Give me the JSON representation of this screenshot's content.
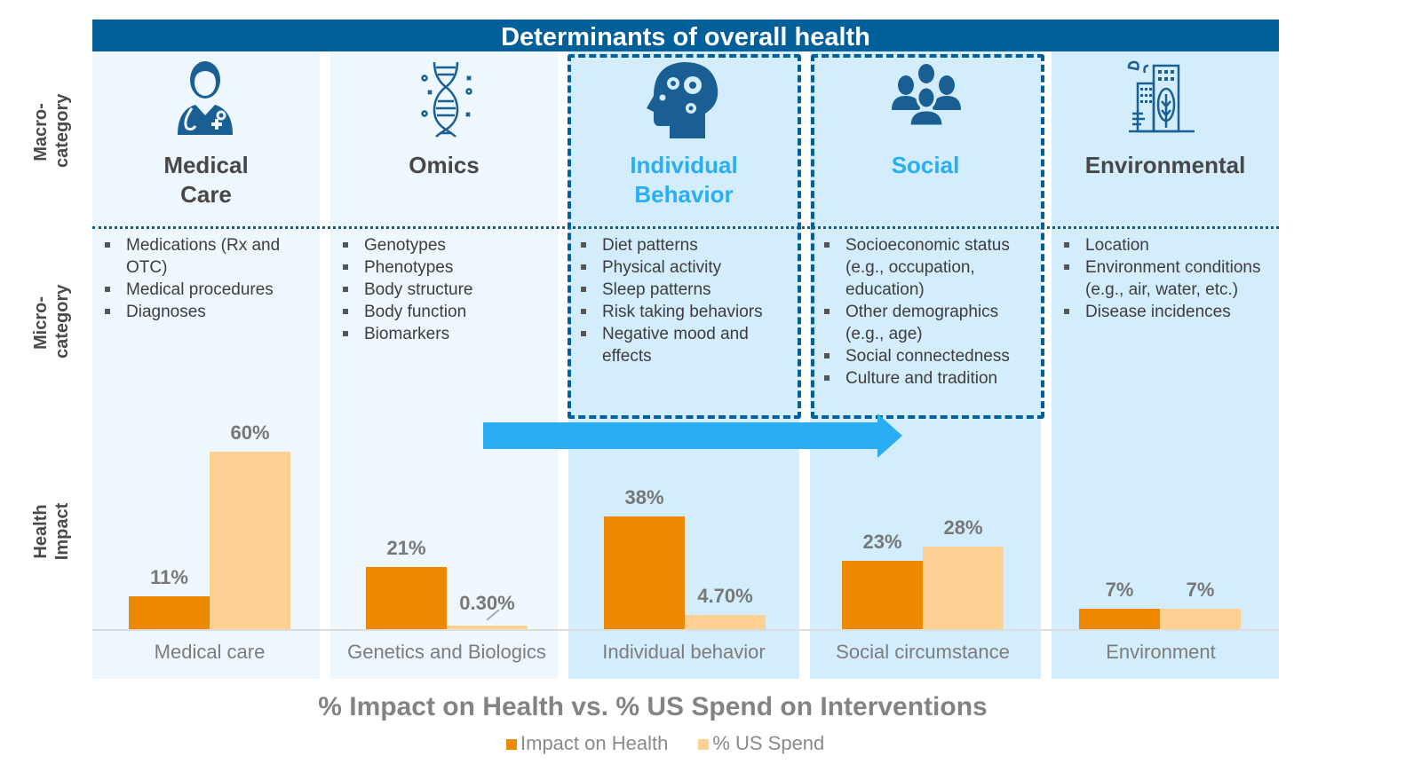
{
  "header": {
    "title": "Determinants of overall health"
  },
  "row_labels": {
    "macro": [
      "Macro-",
      "category"
    ],
    "micro": [
      "Micro-",
      "category"
    ],
    "impact": [
      "Health",
      "Impact"
    ]
  },
  "colors": {
    "header_bg": "#015f99",
    "accent_blue": "#29aef5",
    "impact_bar": "#ec8901",
    "spend_bar": "#fed091",
    "icon": "#1a5f93"
  },
  "columns": [
    {
      "icon": "doctor-icon",
      "macro": [
        "Medical",
        "Care"
      ],
      "highlighted": false,
      "micro": [
        "Medications (Rx and OTC)",
        "Medical procedures",
        "Diagnoses"
      ]
    },
    {
      "icon": "dna-icon",
      "macro": [
        "Omics"
      ],
      "highlighted": false,
      "micro": [
        "Genotypes",
        "Phenotypes",
        "Body structure",
        "Body function",
        "Biomarkers"
      ]
    },
    {
      "icon": "head-gears-icon",
      "macro": [
        "Individual",
        "Behavior"
      ],
      "highlighted": true,
      "micro": [
        "Diet patterns",
        "Physical activity",
        "Sleep patterns",
        "Risk taking behaviors",
        "Negative mood and effects"
      ]
    },
    {
      "icon": "people-group-icon",
      "macro": [
        "Social"
      ],
      "highlighted": true,
      "micro": [
        "Socioeconomic status (e.g., occupation, education)",
        "Other demographics (e.g., age)",
        "Social connectedness",
        "Culture and tradition"
      ]
    },
    {
      "icon": "city-environment-icon",
      "macro": [
        "Environmental"
      ],
      "highlighted": false,
      "micro": [
        "Location",
        "Environment conditions (e.g., air, water, etc.)",
        "Disease incidences"
      ]
    }
  ],
  "chart_data": {
    "type": "bar",
    "title": "% Impact on Health vs. % US Spend on Interventions",
    "categories": [
      "Medical care",
      "Genetics and Biologics",
      "Individual behavior",
      "Social circumstance",
      "Environment"
    ],
    "series": [
      {
        "name": "Impact on Health",
        "values": [
          11,
          21,
          38,
          23,
          7
        ],
        "labels": [
          "11%",
          "21%",
          "38%",
          "23%",
          "7%"
        ],
        "color": "#ec8901"
      },
      {
        "name": "% US Spend",
        "values": [
          60,
          0.3,
          4.7,
          28,
          7
        ],
        "labels": [
          "60%",
          "0.30%",
          "4.70%",
          "28%",
          "7%"
        ],
        "color": "#fed091"
      }
    ],
    "ylim": [
      0,
      60
    ],
    "grid": false,
    "legend": "bottom-center",
    "xlabel": "",
    "ylabel": ""
  }
}
